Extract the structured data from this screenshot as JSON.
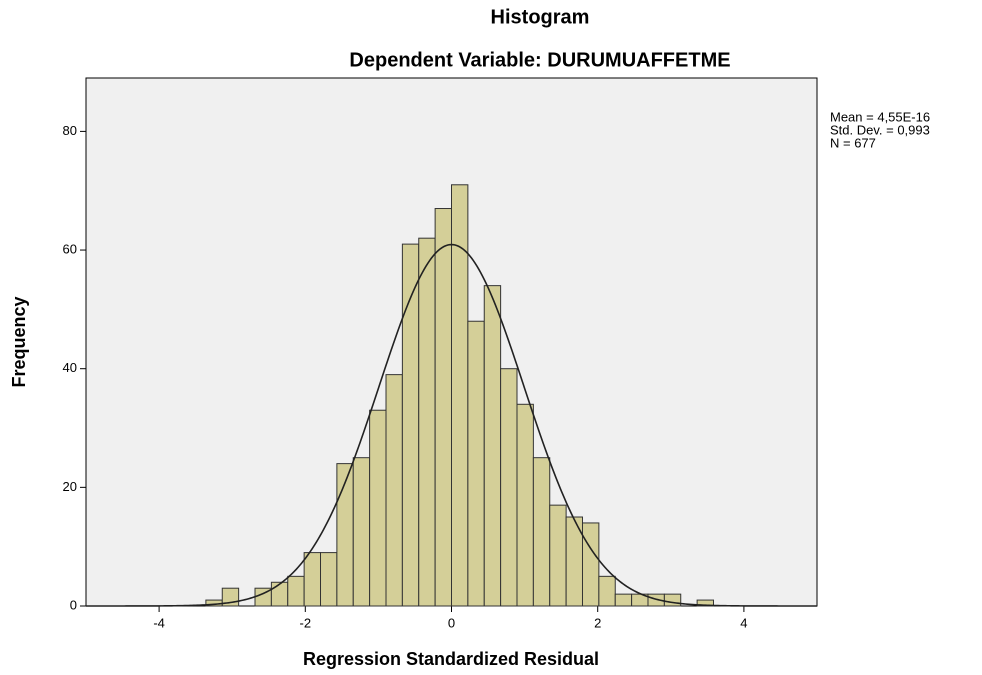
{
  "chart_data": {
    "type": "histogram",
    "title": "Histogram",
    "subtitle": "Dependent Variable: DURUMUAFFETME",
    "x_label": "Regression Standardized Residual",
    "y_label": "Frequency",
    "bins": [
      -3.36,
      -3.136,
      -2.912,
      -2.688,
      -2.464,
      -2.24,
      -2.016,
      -1.792,
      -1.568,
      -1.344,
      -1.12,
      -0.896,
      -0.672,
      -0.448,
      -0.224,
      0,
      0.224,
      0.448,
      0.672,
      0.896,
      1.12,
      1.344,
      1.568,
      1.792,
      2.016,
      2.24,
      2.464,
      2.688,
      2.912,
      3.136,
      3.36,
      3.584
    ],
    "values": [
      1,
      3,
      0,
      3,
      4,
      5,
      9,
      9,
      24,
      25,
      33,
      39,
      61,
      62,
      67,
      71,
      48,
      54,
      40,
      34,
      25,
      17,
      15,
      14,
      5,
      2,
      2,
      2,
      2,
      0,
      1
    ],
    "color": "#d4cf98",
    "stats": [
      {
        "value": 4.55e-16,
        "label": "Mean = 4,55E-16"
      },
      {
        "value": 0.993,
        "label": "Std. Dev. = 0,993"
      },
      {
        "value": 677,
        "label": "N = 677"
      }
    ],
    "xlim": [
      -5,
      5
    ],
    "xticks": [
      -4,
      -2,
      0,
      2,
      4
    ],
    "ylim": [
      0,
      89
    ],
    "yticks": [
      0,
      20,
      40,
      60,
      80
    ]
  }
}
